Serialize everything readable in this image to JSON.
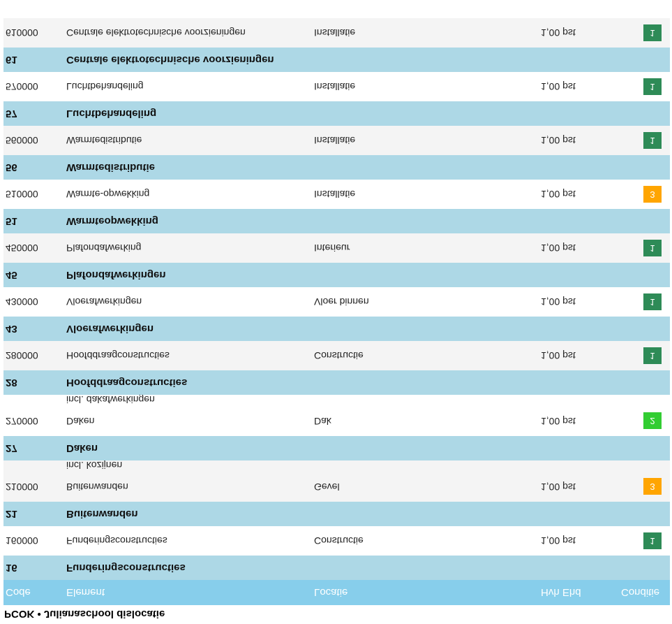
{
  "title": "PCOK • Julianaschool dislocatie",
  "header": [
    "Code",
    "Element",
    "Locatie",
    "Hvh Ehd",
    "Conditie"
  ],
  "condition_colors": {
    "1": "#2e8b57",
    "2": "#32cd32",
    "3": "#ffa500"
  },
  "groups": [
    {
      "code": "16",
      "name": "Funderingsconstructies",
      "item": {
        "code": "160000",
        "element": "Funderingsconstructies",
        "location": "Constructie",
        "quantity": "1,00 pst",
        "condition": "1"
      }
    },
    {
      "code": "21",
      "name": "Buitenwanden",
      "item": {
        "code": "210000",
        "element": "Buitenwanden",
        "note": "incl. kozijnen",
        "location": "Gevel",
        "quantity": "1,00 pst",
        "condition": "3"
      }
    },
    {
      "code": "27",
      "name": "Daken",
      "item": {
        "code": "270000",
        "element": "Daken",
        "note": "incl. dakafwerkingen",
        "location": "Dak",
        "quantity": "1,00 pst",
        "condition": "2"
      }
    },
    {
      "code": "28",
      "name": "Hoofddraagconstructies",
      "item": {
        "code": "280000",
        "element": "Hoofddraagconstructies",
        "location": "Constructie",
        "quantity": "1,00 pst",
        "condition": "1"
      }
    },
    {
      "code": "43",
      "name": "Vloerafwerkingen",
      "item": {
        "code": "430000",
        "element": "Vloerafwerkingen",
        "location": "Vloer binnen",
        "quantity": "1,00 pst",
        "condition": "1"
      }
    },
    {
      "code": "45",
      "name": "Plafondafwerkingen",
      "item": {
        "code": "450000",
        "element": "Plafondafwerking",
        "location": "Interieur",
        "quantity": "1,00 pst",
        "condition": "1"
      }
    },
    {
      "code": "51",
      "name": "Warmteopwekking",
      "item": {
        "code": "510000",
        "element": "Warmte-opwekking",
        "location": "Installatie",
        "quantity": "1,00 pst",
        "condition": "3"
      }
    },
    {
      "code": "56",
      "name": "Warmtedistributie",
      "item": {
        "code": "560000",
        "element": "Warmtedistributie",
        "location": "Installatie",
        "quantity": "1,00 pst",
        "condition": "1"
      }
    },
    {
      "code": "57",
      "name": "Luchtbehandeling",
      "item": {
        "code": "570000",
        "element": "Luchtbehandeling",
        "location": "Installatie",
        "quantity": "1,00 pst",
        "condition": "1"
      }
    },
    {
      "code": "61",
      "name": "Centrale elektrotechnische voorzieningen",
      "item": {
        "code": "610000",
        "element": "Centrale elektrotechnische voorzieningen",
        "location": "Installatie",
        "quantity": "1,00 pst",
        "condition": "1"
      }
    }
  ]
}
